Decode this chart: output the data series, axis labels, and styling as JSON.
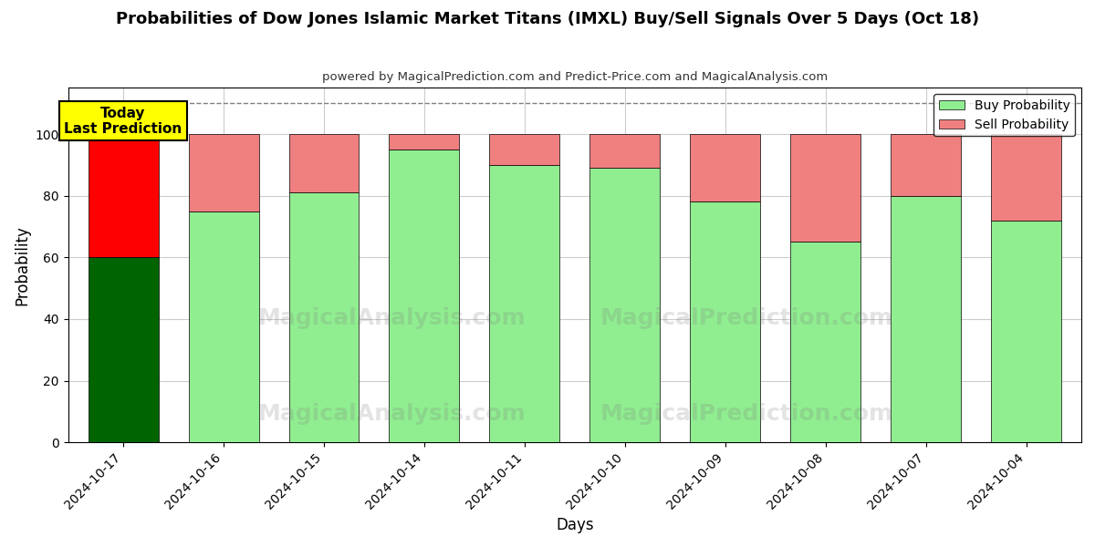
{
  "title": "Probabilities of Dow Jones Islamic Market Titans (IMXL) Buy/Sell Signals Over 5 Days (Oct 18)",
  "subtitle": "powered by MagicalPrediction.com and Predict-Price.com and MagicalAnalysis.com",
  "xlabel": "Days",
  "ylabel": "Probability",
  "categories": [
    "2024-10-17",
    "2024-10-16",
    "2024-10-15",
    "2024-10-14",
    "2024-10-11",
    "2024-10-10",
    "2024-10-09",
    "2024-10-08",
    "2024-10-07",
    "2024-10-04"
  ],
  "buy_values": [
    60,
    75,
    81,
    95,
    90,
    89,
    78,
    65,
    80,
    72
  ],
  "sell_values": [
    40,
    25,
    19,
    5,
    10,
    11,
    22,
    35,
    20,
    28
  ],
  "buy_colors": [
    "#006400",
    "#90EE90",
    "#90EE90",
    "#90EE90",
    "#90EE90",
    "#90EE90",
    "#90EE90",
    "#90EE90",
    "#90EE90",
    "#90EE90"
  ],
  "sell_colors": [
    "#FF0000",
    "#F08080",
    "#F08080",
    "#F08080",
    "#F08080",
    "#F08080",
    "#F08080",
    "#F08080",
    "#F08080",
    "#F08080"
  ],
  "legend_buy_color": "#90EE90",
  "legend_sell_color": "#F08080",
  "today_box_color": "#FFFF00",
  "today_text": "Today\nLast Prediction",
  "dashed_line_y": 110,
  "ylim": [
    0,
    115
  ],
  "yticks": [
    0,
    20,
    40,
    60,
    80,
    100
  ],
  "background_color": "#ffffff",
  "grid_color": "#cccccc",
  "watermark_left": "MagicalAnalysis.com",
  "watermark_right": "MagicalPrediction.com"
}
